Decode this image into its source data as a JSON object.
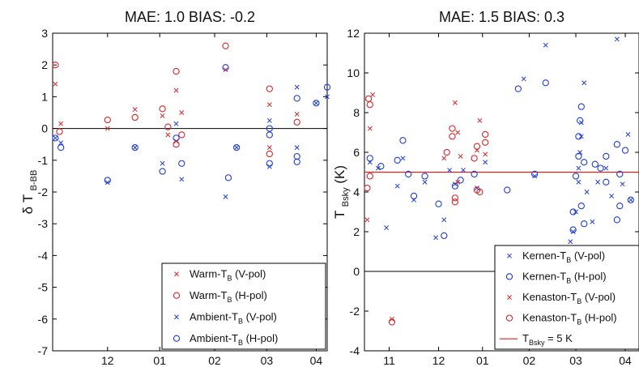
{
  "chart_data": [
    {
      "type": "scatter",
      "title": "MAE: 1.0   BIAS: -0.2",
      "ylabel_main": "δ T",
      "ylabel_sub": "B-BB",
      "xlabel": "",
      "xlim": [
        0,
        10
      ],
      "ylim": [
        -7,
        3
      ],
      "y_ticks": [
        3,
        2,
        1,
        0,
        -1,
        -2,
        -3,
        -4,
        -5,
        -6,
        -7
      ],
      "x_ticks": [
        {
          "x": 2.0,
          "label": "12"
        },
        {
          "x": 3.9,
          "label": "01"
        },
        {
          "x": 5.9,
          "label": "02"
        },
        {
          "x": 7.8,
          "label": "03"
        },
        {
          "x": 9.6,
          "label": "04"
        }
      ],
      "hline": 0,
      "legend_position": "bottom-right",
      "series": [
        {
          "label_main": "Warm-T",
          "label_sub": "B",
          "label_tail": " (V-pol)",
          "marker": "x",
          "color": "#d62728",
          "points": [
            [
              0.1,
              1.4
            ],
            [
              0.3,
              0.15
            ],
            [
              2.0,
              0.0
            ],
            [
              3.0,
              0.6
            ],
            [
              4.0,
              0.4
            ],
            [
              4.5,
              1.2
            ],
            [
              4.7,
              0.5
            ],
            [
              6.3,
              1.85
            ],
            [
              7.9,
              0.75
            ],
            [
              7.9,
              -0.6
            ],
            [
              8.9,
              0.45
            ],
            [
              4.2,
              -0.2
            ],
            [
              4.5,
              -0.4
            ]
          ]
        },
        {
          "label_main": "Warm-T",
          "label_sub": "B",
          "label_tail": " (H-pol)",
          "marker": "o",
          "color": "#d62728",
          "points": [
            [
              0.1,
              2.0
            ],
            [
              0.25,
              -0.1
            ],
            [
              2.0,
              0.27
            ],
            [
              3.0,
              0.35
            ],
            [
              4.0,
              0.62
            ],
            [
              4.2,
              0.05
            ],
            [
              4.5,
              1.8
            ],
            [
              4.7,
              -0.2
            ],
            [
              6.3,
              2.6
            ],
            [
              7.9,
              1.25
            ],
            [
              7.9,
              -0.8
            ],
            [
              8.9,
              0.2
            ],
            [
              4.5,
              -0.5
            ]
          ]
        },
        {
          "label_main": "Ambient-T",
          "label_sub": "B",
          "label_tail": " (V-pol)",
          "marker": "x",
          "color": "#1f3fd6",
          "points": [
            [
              0.1,
              -0.3
            ],
            [
              0.3,
              -0.45
            ],
            [
              2.0,
              -1.7
            ],
            [
              3.0,
              -0.6
            ],
            [
              4.0,
              -1.1
            ],
            [
              4.2,
              -6.1
            ],
            [
              4.5,
              0.15
            ],
            [
              4.7,
              -1.6
            ],
            [
              6.3,
              -2.15
            ],
            [
              6.7,
              -0.6
            ],
            [
              7.9,
              -1.2
            ],
            [
              7.9,
              0.25
            ],
            [
              8.9,
              1.3
            ],
            [
              8.9,
              -0.6
            ],
            [
              9.6,
              0.8
            ],
            [
              10.0,
              1.0
            ]
          ]
        },
        {
          "label_main": "Ambient-T",
          "label_sub": "B",
          "label_tail": " (H-pol)",
          "marker": "o",
          "color": "#1f3fd6",
          "points": [
            [
              0.1,
              -0.3
            ],
            [
              0.3,
              -0.6
            ],
            [
              2.0,
              -1.63
            ],
            [
              3.0,
              -0.6
            ],
            [
              4.0,
              -1.35
            ],
            [
              4.2,
              -6.45
            ],
            [
              4.5,
              -0.3
            ],
            [
              4.7,
              -1.1
            ],
            [
              6.3,
              1.92
            ],
            [
              6.4,
              -1.55
            ],
            [
              6.7,
              -0.6
            ],
            [
              7.9,
              0.0
            ],
            [
              7.9,
              -0.2
            ],
            [
              7.9,
              -1.1
            ],
            [
              8.9,
              0.95
            ],
            [
              8.9,
              -0.88
            ],
            [
              8.9,
              -1.05
            ],
            [
              9.6,
              0.8
            ],
            [
              10.0,
              1.3
            ]
          ]
        }
      ]
    },
    {
      "type": "scatter",
      "title": "MAE: 1.5   BIAS: 0.3",
      "ylabel_main": "T",
      "ylabel_sub": "Bsky",
      "ylabel_tail": " (K)",
      "xlabel": "",
      "xlim": [
        0,
        10
      ],
      "ylim": [
        -4,
        12
      ],
      "y_ticks": [
        12,
        10,
        8,
        6,
        4,
        2,
        0,
        -2,
        -4
      ],
      "x_ticks": [
        {
          "x": 0.9,
          "label": "11"
        },
        {
          "x": 2.7,
          "label": "12"
        },
        {
          "x": 4.3,
          "label": "01"
        },
        {
          "x": 6.0,
          "label": "02"
        },
        {
          "x": 7.7,
          "label": "03"
        },
        {
          "x": 9.5,
          "label": "04"
        }
      ],
      "hline": 0,
      "reference_line": {
        "y": 5,
        "label_main": "T",
        "label_sub": "Bsky",
        "label_tail": " = 5 K",
        "color": "#e02020"
      },
      "legend_position": "bottom-right",
      "series": [
        {
          "label_main": "Kernen-T",
          "label_sub": "B",
          "label_tail": " (V-pol)",
          "marker": "x",
          "color": "#1f3fd6",
          "points": [
            [
              0.2,
              5.5
            ],
            [
              0.5,
              5.2
            ],
            [
              0.8,
              2.2
            ],
            [
              1.2,
              4.3
            ],
            [
              1.4,
              5.7
            ],
            [
              1.8,
              3.6
            ],
            [
              2.2,
              4.5
            ],
            [
              2.6,
              1.7
            ],
            [
              2.9,
              2.6
            ],
            [
              3.1,
              5.1
            ],
            [
              3.3,
              4.4
            ],
            [
              3.6,
              5.1
            ],
            [
              4.1,
              4.2
            ],
            [
              4.4,
              5.5
            ],
            [
              5.8,
              9.7
            ],
            [
              6.2,
              4.8
            ],
            [
              6.6,
              11.4
            ],
            [
              7.5,
              1.5
            ],
            [
              7.6,
              2.0
            ],
            [
              7.7,
              3.0
            ],
            [
              7.8,
              4.5
            ],
            [
              7.85,
              6.0
            ],
            [
              7.9,
              7.5
            ],
            [
              8.0,
              9.5
            ],
            [
              8.1,
              4.0
            ],
            [
              8.3,
              2.5
            ],
            [
              8.5,
              4.5
            ],
            [
              8.8,
              5.2
            ],
            [
              9.2,
              11.7
            ],
            [
              9.4,
              4.4
            ],
            [
              9.6,
              6.9
            ],
            [
              9.7,
              3.6
            ],
            [
              9.0,
              3.8
            ],
            [
              7.8,
              5.2
            ],
            [
              7.9,
              6.8
            ]
          ]
        },
        {
          "label_main": "Kernen-T",
          "label_sub": "B",
          "label_tail": " (H-pol)",
          "marker": "o",
          "color": "#1f3fd6",
          "points": [
            [
              0.2,
              5.7
            ],
            [
              0.6,
              5.3
            ],
            [
              1.2,
              5.6
            ],
            [
              1.4,
              6.6
            ],
            [
              1.6,
              4.9
            ],
            [
              1.8,
              3.8
            ],
            [
              2.2,
              4.8
            ],
            [
              2.7,
              3.4
            ],
            [
              2.9,
              1.8
            ],
            [
              3.3,
              4.3
            ],
            [
              3.5,
              4.6
            ],
            [
              4.0,
              4.9
            ],
            [
              5.2,
              4.1
            ],
            [
              5.6,
              9.2
            ],
            [
              6.2,
              4.9
            ],
            [
              6.6,
              9.5
            ],
            [
              7.6,
              2.1
            ],
            [
              7.6,
              3.0
            ],
            [
              7.7,
              4.8
            ],
            [
              7.8,
              5.8
            ],
            [
              7.8,
              6.8
            ],
            [
              7.85,
              7.6
            ],
            [
              7.9,
              8.3
            ],
            [
              7.9,
              3.3
            ],
            [
              8.0,
              2.4
            ],
            [
              8.0,
              5.5
            ],
            [
              8.4,
              5.4
            ],
            [
              8.6,
              5.2
            ],
            [
              8.8,
              5.8
            ],
            [
              8.8,
              4.5
            ],
            [
              9.2,
              6.4
            ],
            [
              9.3,
              3.3
            ],
            [
              9.2,
              2.6
            ],
            [
              9.5,
              6.1
            ],
            [
              9.7,
              3.6
            ],
            [
              9.3,
              4.9
            ]
          ]
        },
        {
          "label_main": "Kenaston-T",
          "label_sub": "B",
          "label_tail": " (V-pol)",
          "marker": "x",
          "color": "#d62728",
          "points": [
            [
              0.1,
              2.6
            ],
            [
              0.2,
              7.2
            ],
            [
              0.3,
              8.9
            ],
            [
              1.0,
              -2.4
            ],
            [
              2.9,
              5.7
            ],
            [
              3.3,
              8.5
            ],
            [
              3.4,
              7.0
            ],
            [
              3.5,
              5.8
            ],
            [
              4.1,
              6.1
            ],
            [
              4.2,
              7.6
            ],
            [
              4.4,
              5.9
            ],
            [
              3.4,
              4.5
            ]
          ]
        },
        {
          "label_main": "Kenaston-T",
          "label_sub": "B",
          "label_tail": " (H-pol)",
          "marker": "o",
          "color": "#d62728",
          "points": [
            [
              0.1,
              4.2
            ],
            [
              0.15,
              8.7
            ],
            [
              0.2,
              8.4
            ],
            [
              0.2,
              4.8
            ],
            [
              1.0,
              -2.55
            ],
            [
              3.0,
              6.0
            ],
            [
              3.2,
              7.2
            ],
            [
              3.2,
              6.8
            ],
            [
              3.3,
              3.7
            ],
            [
              3.3,
              3.5
            ],
            [
              4.0,
              5.7
            ],
            [
              4.1,
              6.3
            ],
            [
              4.1,
              4.1
            ],
            [
              4.2,
              4.0
            ],
            [
              4.4,
              6.9
            ],
            [
              4.4,
              6.5
            ]
          ]
        }
      ]
    }
  ]
}
